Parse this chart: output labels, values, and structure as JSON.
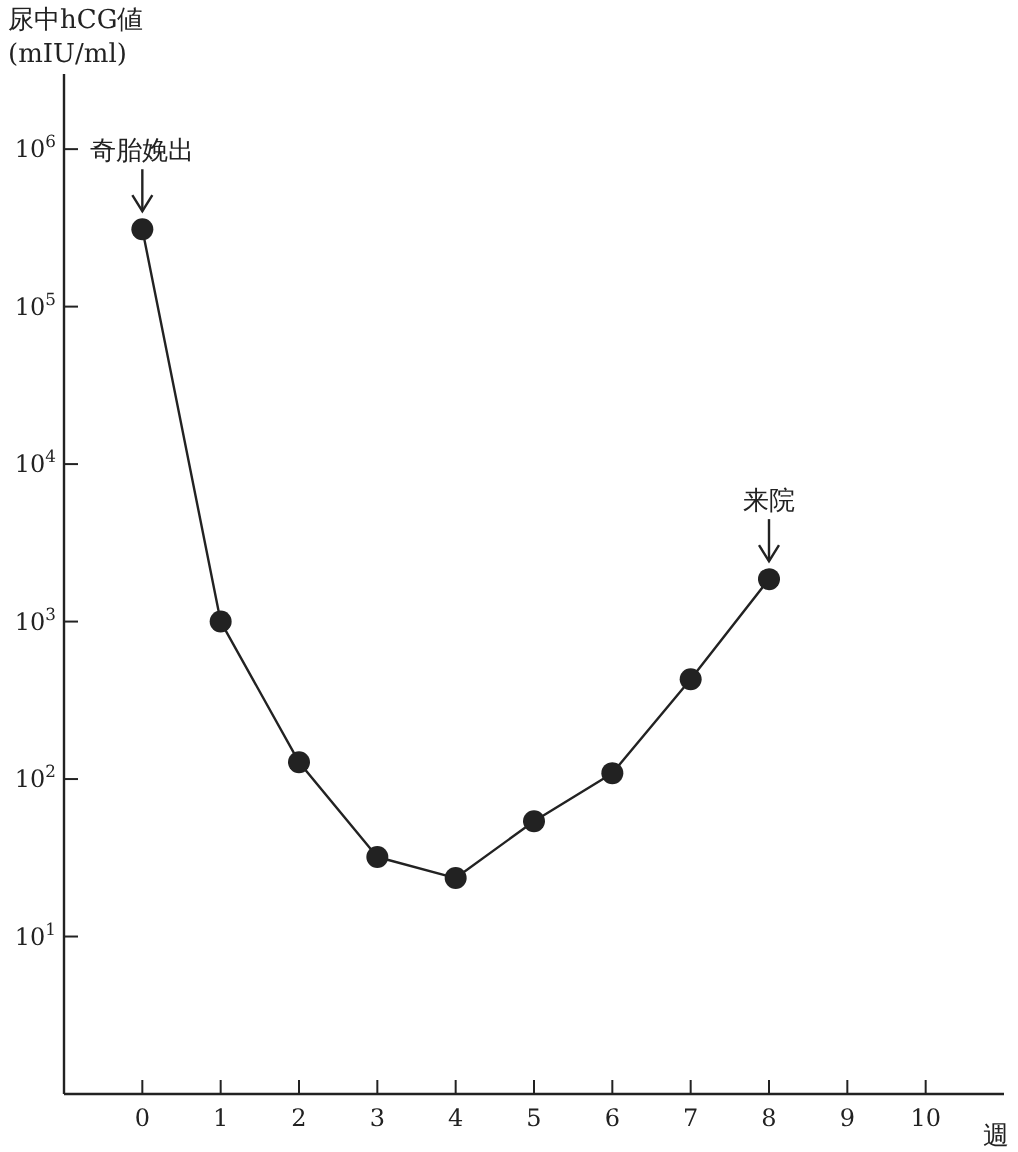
{
  "chart_data": {
    "type": "line",
    "xlabel": "週",
    "ylabel": "尿中hCG値\n(mIU/ml)",
    "x": [
      0,
      1,
      2,
      3,
      4,
      5,
      6,
      7,
      8
    ],
    "values": [
      310000,
      1000,
      128,
      32,
      23.5,
      54,
      109,
      430,
      1860
    ],
    "color": "#222222",
    "marker": "circle",
    "line_style": "solid",
    "grid": false,
    "log": "y",
    "xlim": [
      -1,
      11
    ],
    "xticks": [
      0,
      1,
      2,
      3,
      4,
      5,
      6,
      7,
      8,
      9,
      10
    ],
    "ylim": [
      1,
      3000000
    ],
    "yticks": [
      {
        "value": 10,
        "label": "10$^{1}$"
      },
      {
        "value": 100,
        "label": "10$^{2}$"
      },
      {
        "value": 1000,
        "label": "10$^{3}$"
      },
      {
        "value": 10000,
        "label": "10$^{4}$"
      },
      {
        "value": 100000,
        "label": "10$^{5}$"
      },
      {
        "value": 1000000,
        "label": "10$^{6}$"
      }
    ],
    "annotations": [
      {
        "text": "奇胎娩出",
        "x": 0,
        "y": 310000
      },
      {
        "text": "来院",
        "x": 8,
        "y": 1860
      }
    ]
  }
}
